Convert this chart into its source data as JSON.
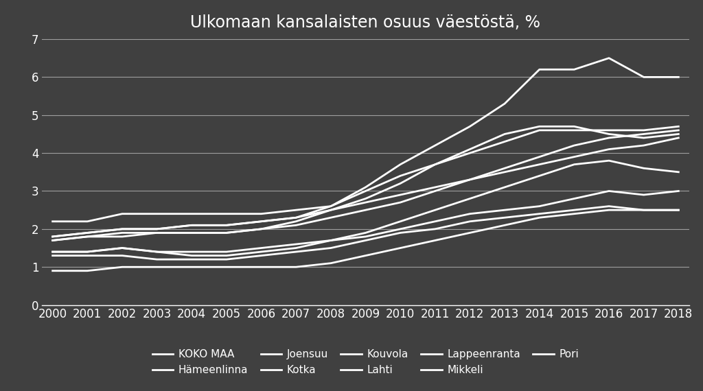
{
  "title": "Ulkomaan kansalaisten osuus väestöstä, %",
  "years": [
    2000,
    2001,
    2002,
    2003,
    2004,
    2005,
    2006,
    2007,
    2008,
    2009,
    2010,
    2011,
    2012,
    2013,
    2014,
    2015,
    2016,
    2017,
    2018
  ],
  "series": {
    "KOKO MAA": [
      1.8,
      1.9,
      2.0,
      2.0,
      2.1,
      2.1,
      2.2,
      2.3,
      2.5,
      2.7,
      2.9,
      3.1,
      3.3,
      3.5,
      3.7,
      3.9,
      4.1,
      4.2,
      4.4
    ],
    "Hämeenlinna": [
      1.7,
      1.8,
      1.8,
      1.9,
      1.9,
      1.9,
      2.0,
      2.1,
      2.3,
      2.5,
      2.7,
      3.0,
      3.3,
      3.6,
      3.9,
      4.2,
      4.4,
      4.5,
      4.6
    ],
    "Joensuu": [
      0.9,
      0.9,
      1.0,
      1.0,
      1.0,
      1.0,
      1.0,
      1.0,
      1.1,
      1.3,
      1.5,
      1.7,
      1.9,
      2.1,
      2.3,
      2.4,
      2.5,
      2.5,
      2.5
    ],
    "Kotka": [
      2.2,
      2.2,
      2.4,
      2.4,
      2.4,
      2.4,
      2.4,
      2.5,
      2.6,
      3.0,
      3.4,
      3.7,
      4.0,
      4.3,
      4.6,
      4.6,
      4.6,
      4.6,
      4.7
    ],
    "Kouvola": [
      1.4,
      1.4,
      1.5,
      1.4,
      1.4,
      1.4,
      1.5,
      1.6,
      1.7,
      1.9,
      2.2,
      2.5,
      2.8,
      3.1,
      3.4,
      3.7,
      3.8,
      3.6,
      3.5
    ],
    "Lahti": [
      1.8,
      1.9,
      2.0,
      2.0,
      2.1,
      2.1,
      2.2,
      2.3,
      2.6,
      3.1,
      3.7,
      4.2,
      4.7,
      5.3,
      6.2,
      6.2,
      6.5,
      6.0,
      6.0
    ],
    "Lappeenranta": [
      1.7,
      1.8,
      1.9,
      1.9,
      1.9,
      1.9,
      2.0,
      2.2,
      2.5,
      2.8,
      3.2,
      3.7,
      4.1,
      4.5,
      4.7,
      4.7,
      4.5,
      4.4,
      4.5
    ],
    "Mikkeli": [
      1.4,
      1.4,
      1.5,
      1.4,
      1.3,
      1.3,
      1.4,
      1.5,
      1.7,
      1.8,
      2.0,
      2.2,
      2.4,
      2.5,
      2.6,
      2.8,
      3.0,
      2.9,
      3.0
    ],
    "Pori": [
      1.3,
      1.3,
      1.3,
      1.2,
      1.2,
      1.2,
      1.3,
      1.4,
      1.5,
      1.7,
      1.9,
      2.0,
      2.2,
      2.3,
      2.4,
      2.5,
      2.6,
      2.5,
      2.5
    ]
  },
  "ylim": [
    0,
    7
  ],
  "yticks": [
    0,
    1,
    2,
    3,
    4,
    5,
    6,
    7
  ],
  "line_color": "white",
  "background_color": "#404040",
  "text_color": "white",
  "grid_color": "white",
  "title_fontsize": 17,
  "tick_fontsize": 12,
  "legend_fontsize": 11,
  "line_width": 2.0,
  "legend_row1": [
    "KOKO MAA",
    "Hämeenlinna",
    "Joensuu",
    "Kotka",
    "Kouvola"
  ],
  "legend_row2": [
    "Lahti",
    "Lappeenranta",
    "Mikkeli",
    "Pori"
  ]
}
